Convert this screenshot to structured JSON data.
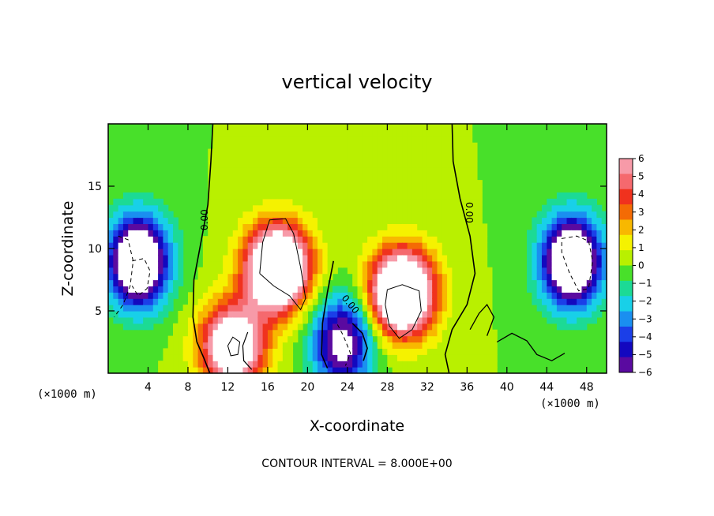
{
  "chart_data": {
    "type": "heatmap",
    "title": "vertical velocity",
    "xlabel": "X-coordinate",
    "ylabel": "Z-coordinate",
    "x_unit_label": "(×1000 m)",
    "x_unit_label_right": "(×1000 m)",
    "xlim": [
      0,
      50
    ],
    "ylim": [
      0,
      20
    ],
    "x_ticks": [
      4,
      8,
      12,
      16,
      20,
      24,
      28,
      32,
      36,
      40,
      44,
      48
    ],
    "y_ticks": [
      5,
      10,
      15
    ],
    "footer": "CONTOUR INTERVAL = 8.000E+00",
    "contour_label": "0.00",
    "colorbar": {
      "min": -6,
      "max": 6,
      "labels": [
        "6",
        "5",
        "4",
        "3",
        "2",
        "1",
        "0",
        "−1",
        "−2",
        "−3",
        "−4",
        "−5",
        "−6"
      ],
      "colors": [
        "#f79aa8",
        "#f5696e",
        "#f0321e",
        "#f46b05",
        "#f8b800",
        "#f5f200",
        "#b9f000",
        "#48e02a",
        "#1cda95",
        "#18d0e8",
        "#1a8ff0",
        "#1b3fe8",
        "#1308bf",
        "#5a0aa0"
      ]
    },
    "features": [
      {
        "kind": "updraft",
        "x": 17.0,
        "z": 8.5,
        "peak": 12
      },
      {
        "kind": "updraft",
        "x": 29.5,
        "z": 6.5,
        "peak": 12
      },
      {
        "kind": "updraft",
        "x": 12.5,
        "z": 2.2,
        "peak": 9
      },
      {
        "kind": "downdraft",
        "x": 3.0,
        "z": 9.0,
        "peak": -10
      },
      {
        "kind": "downdraft",
        "x": 46.5,
        "z": 9.0,
        "peak": -10
      },
      {
        "kind": "downdraft",
        "x": 23.5,
        "z": 2.5,
        "peak": -7
      }
    ]
  }
}
